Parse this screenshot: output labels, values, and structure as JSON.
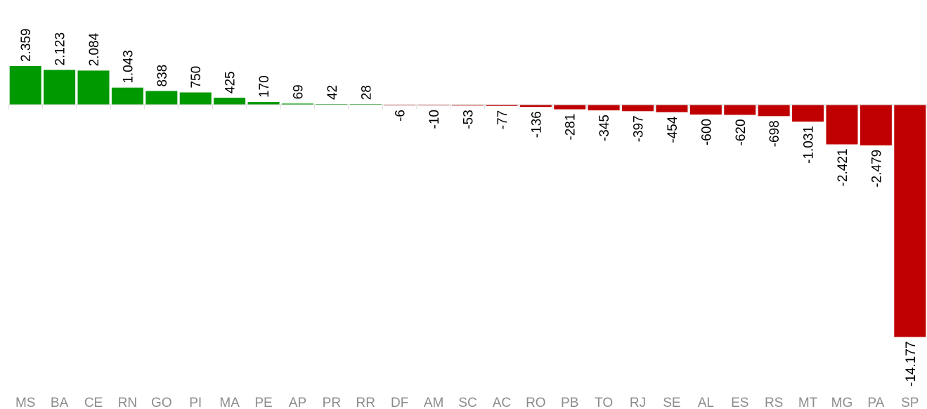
{
  "chart_data": {
    "type": "bar",
    "title": "",
    "xlabel": "",
    "ylabel": "",
    "categories": [
      "MS",
      "BA",
      "CE",
      "RN",
      "GO",
      "PI",
      "MA",
      "PE",
      "AP",
      "PR",
      "RR",
      "DF",
      "AM",
      "SC",
      "AC",
      "RO",
      "PB",
      "TO",
      "RJ",
      "SE",
      "AL",
      "ES",
      "RS",
      "MT",
      "MG",
      "PA",
      "SP"
    ],
    "values": [
      2359,
      2123,
      2084,
      1043,
      838,
      750,
      425,
      170,
      69,
      42,
      28,
      -6,
      -10,
      -53,
      -77,
      -136,
      -281,
      -345,
      -397,
      -454,
      -600,
      -620,
      -698,
      -1031,
      -2421,
      -2479,
      -14177
    ],
    "value_labels": [
      "2.359",
      "2.123",
      "2.084",
      "1.043",
      "838",
      "750",
      "425",
      "170",
      "69",
      "42",
      "28",
      "-6",
      "-10",
      "-53",
      "-77",
      "-136",
      "-281",
      "-345",
      "-397",
      "-454",
      "-600",
      "-620",
      "-698",
      "-1.031",
      "-2.421",
      "-2.479",
      "-14.177"
    ],
    "ylim": [
      -14177,
      2359
    ],
    "grid": false,
    "legend": "none",
    "colors": {
      "positive": "#009900",
      "negative": "#c00000",
      "axis": "#d9d9d9"
    }
  }
}
